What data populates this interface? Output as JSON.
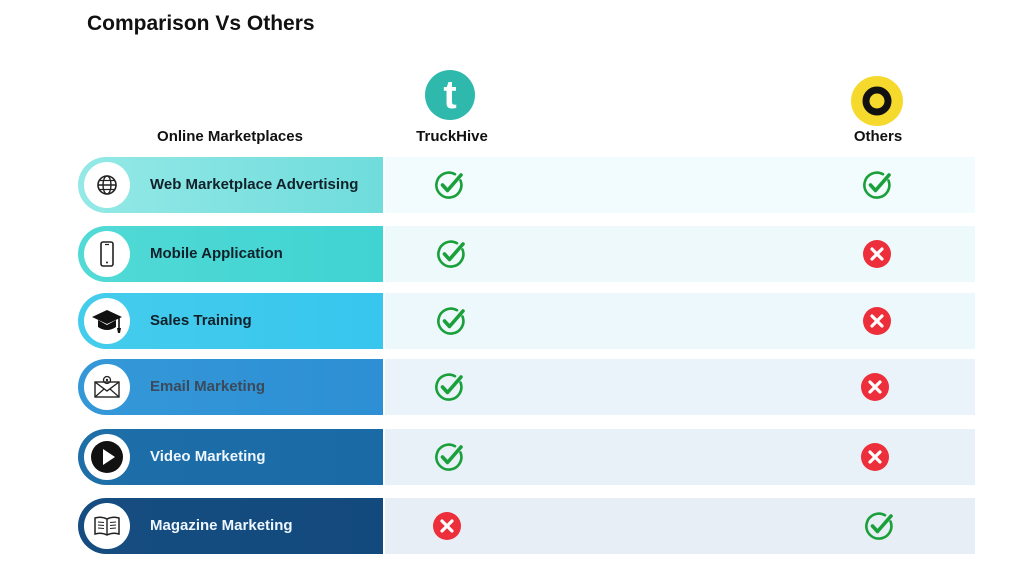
{
  "title": "Comparison Vs Others",
  "headers": {
    "feature_col": "Online Marketplaces",
    "brand_a": "TruckHive",
    "brand_b": "Others",
    "brand_a_logo_letter": "t"
  },
  "colors": {
    "check": "#1aa03a",
    "cross": "#ec2f3a",
    "brand_a_logo": "#2fb9ac",
    "brand_b_logo": "#f5d92c"
  },
  "rows": [
    {
      "label": "Web Marketplace Advertising",
      "icon": "globe-icon",
      "truckhive": "check",
      "others": "check"
    },
    {
      "label": "Mobile Application",
      "icon": "smartphone-icon",
      "truckhive": "check",
      "others": "cross"
    },
    {
      "label": "Sales Training",
      "icon": "graduation-cap-icon",
      "truckhive": "check",
      "others": "cross"
    },
    {
      "label": "Email Marketing",
      "icon": "envelope-icon",
      "truckhive": "check",
      "others": "cross"
    },
    {
      "label": "Video Marketing",
      "icon": "play-icon",
      "truckhive": "check",
      "others": "cross"
    },
    {
      "label": "Magazine Marketing",
      "icon": "open-book-icon",
      "truckhive": "cross",
      "others": "check"
    }
  ]
}
